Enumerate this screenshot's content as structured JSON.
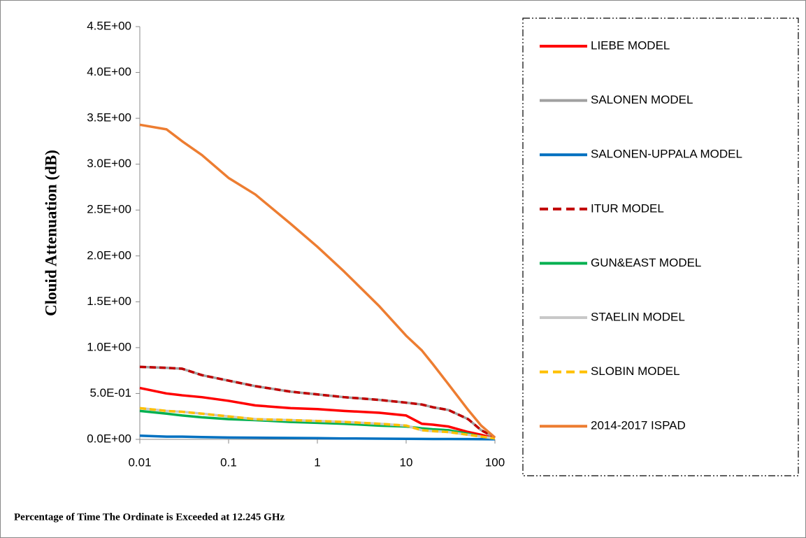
{
  "chart_data": {
    "type": "line",
    "xlabel": "Percentage of Time The Ordinate is Exceeded at 12.245 GHz",
    "ylabel": "Clouid Attenuation (dB)",
    "xscale": "log",
    "x": [
      0.01,
      0.02,
      0.03,
      0.05,
      0.1,
      0.2,
      0.5,
      1,
      2,
      5,
      10,
      15,
      20,
      30,
      50,
      70,
      100
    ],
    "xlim": [
      0.01,
      100
    ],
    "xticks": [
      0.01,
      0.1,
      1,
      10,
      100
    ],
    "ylim": [
      0,
      4.5
    ],
    "yticks": [
      {
        "value": 0,
        "label": "0.0E+00"
      },
      {
        "value": 0.5,
        "label": "5.0E-01"
      },
      {
        "value": 1,
        "label": "1.0E+00"
      },
      {
        "value": 1.5,
        "label": "1.5E+00"
      },
      {
        "value": 2,
        "label": "2.0E+00"
      },
      {
        "value": 2.5,
        "label": "2.5E+00"
      },
      {
        "value": 3,
        "label": "3.0E+00"
      },
      {
        "value": 3.5,
        "label": "3.5E+00"
      },
      {
        "value": 4,
        "label": "4.0E+00"
      },
      {
        "value": 4.5,
        "label": "4.5E+00"
      }
    ],
    "legend": "right",
    "series": [
      {
        "name": "LIEBE MODEL",
        "color": "#ff0000",
        "values": [
          0.56,
          0.5,
          0.48,
          0.46,
          0.42,
          0.37,
          0.34,
          0.33,
          0.31,
          0.29,
          0.26,
          0.17,
          0.16,
          0.14,
          0.08,
          0.05,
          0.01
        ]
      },
      {
        "name": "SALONEN MODEL",
        "color": "#a0a0a0",
        "values": [
          0.79,
          0.78,
          0.77,
          0.7,
          0.64,
          0.58,
          0.52,
          0.49,
          0.46,
          0.43,
          0.4,
          0.38,
          0.35,
          0.32,
          0.22,
          0.1,
          0.02
        ]
      },
      {
        "name": "SALONEN-UPPALA MODEL",
        "color": "#0070c0",
        "values": [
          0.04,
          0.03,
          0.03,
          0.025,
          0.02,
          0.018,
          0.015,
          0.013,
          0.01,
          0.008,
          0.006,
          0.005,
          0.004,
          0.004,
          0.003,
          0.002,
          0.001
        ]
      },
      {
        "name": "ITUR MODEL",
        "color": "#c00000",
        "dashed": true,
        "values": [
          0.79,
          0.78,
          0.77,
          0.7,
          0.64,
          0.58,
          0.52,
          0.49,
          0.46,
          0.43,
          0.4,
          0.38,
          0.35,
          0.32,
          0.22,
          0.1,
          0.02
        ]
      },
      {
        "name": "GUN&EAST MODEL",
        "color": "#00b050",
        "values": [
          0.31,
          0.28,
          0.26,
          0.24,
          0.22,
          0.21,
          0.19,
          0.18,
          0.17,
          0.15,
          0.14,
          0.12,
          0.11,
          0.1,
          0.06,
          0.03,
          0.01
        ]
      },
      {
        "name": "STAELIN MODEL",
        "color": "#c8c8c8",
        "values": [
          0.34,
          0.31,
          0.3,
          0.28,
          0.25,
          0.22,
          0.21,
          0.2,
          0.19,
          0.17,
          0.15,
          0.1,
          0.09,
          0.08,
          0.05,
          0.03,
          0.01
        ]
      },
      {
        "name": "SLOBIN MODEL",
        "color": "#ffc000",
        "dashed": true,
        "values": [
          0.34,
          0.31,
          0.3,
          0.28,
          0.25,
          0.22,
          0.21,
          0.2,
          0.19,
          0.17,
          0.15,
          0.1,
          0.09,
          0.08,
          0.05,
          0.03,
          0.01
        ]
      },
      {
        "name": "2014-2017  ISPAD",
        "color": "#ed7d31",
        "values": [
          3.43,
          3.38,
          3.25,
          3.1,
          2.85,
          2.67,
          2.35,
          2.1,
          1.83,
          1.45,
          1.13,
          0.97,
          0.82,
          0.6,
          0.32,
          0.15,
          0.02
        ]
      }
    ]
  }
}
